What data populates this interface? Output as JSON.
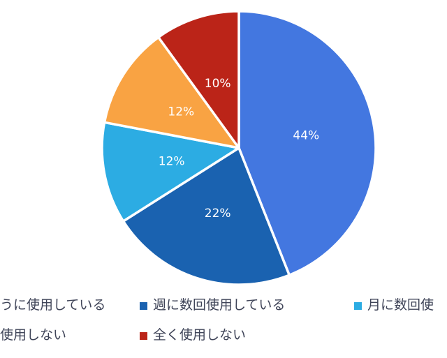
{
  "chart_data": {
    "type": "pie",
    "title": "",
    "values": [
      44,
      22,
      12,
      12,
      10
    ],
    "labels": [
      "44%",
      "22%",
      "12%",
      "12%",
      "10%"
    ],
    "colors": [
      "#4377e0",
      "#1a62b0",
      "#2cace3",
      "#f9a343",
      "#bb2418"
    ],
    "layout": {
      "start_angle": "top",
      "direction": "clockwise",
      "slice_gap_color": "#ffffff",
      "label_color": "#ffffff",
      "legend_position": "bottom",
      "legend_text_color": "#3f4458",
      "background": "#ffffff"
    },
    "legend": {
      "rows": [
        {
          "items": [
            {
              "label": "うに使用している",
              "marker_color": null,
              "truncated_left": true
            },
            {
              "label": "週に数回使用している",
              "marker_color": "#1a62b0"
            },
            {
              "label": "月に数回使",
              "marker_color": "#2cace3",
              "truncated_right": true
            }
          ]
        },
        {
          "items": [
            {
              "label": "使用しない",
              "marker_color": null,
              "truncated_left": true
            },
            {
              "label": "全く使用しない",
              "marker_color": "#bb2418"
            }
          ]
        }
      ]
    }
  }
}
